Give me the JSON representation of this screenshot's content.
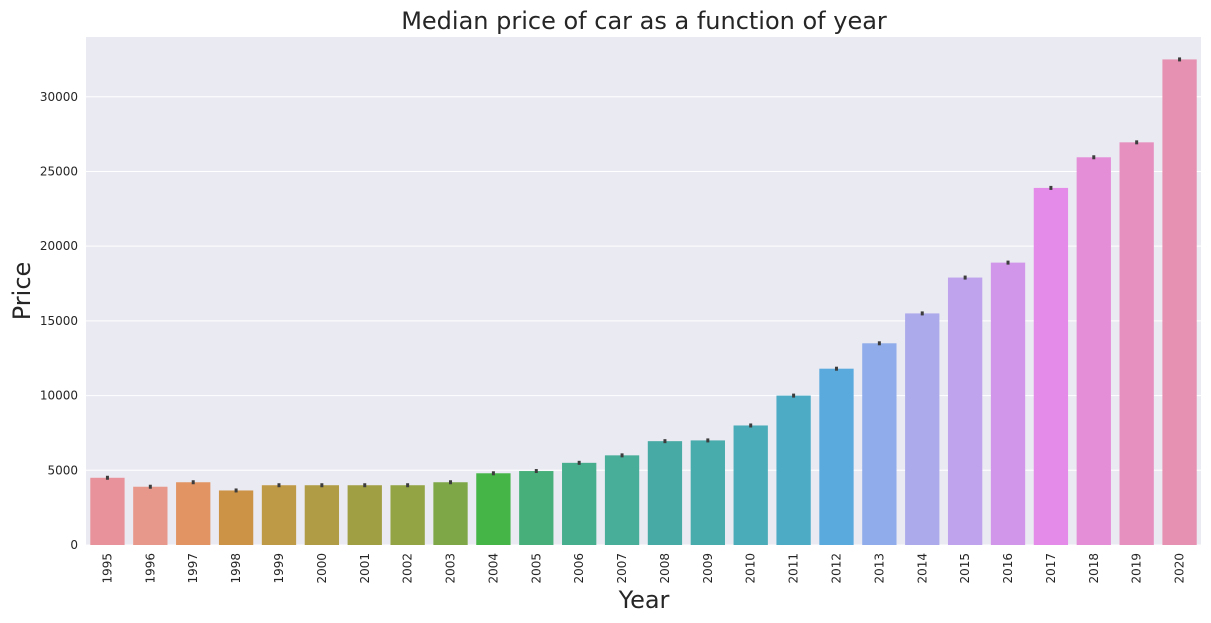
{
  "chart_data": {
    "type": "bar",
    "title": "Median price of car as a function of year",
    "xlabel": "Year",
    "ylabel": "Price",
    "categories": [
      "1995",
      "1996",
      "1997",
      "1998",
      "1999",
      "2000",
      "2001",
      "2002",
      "2003",
      "2004",
      "2005",
      "2006",
      "2007",
      "2008",
      "2009",
      "2010",
      "2011",
      "2012",
      "2013",
      "2014",
      "2015",
      "2016",
      "2017",
      "2018",
      "2019",
      "2020"
    ],
    "values": [
      4500,
      3900,
      4200,
      3650,
      4000,
      4000,
      4000,
      4000,
      4200,
      4800,
      4950,
      5500,
      6000,
      6950,
      7000,
      8000,
      10000,
      11800,
      13500,
      15500,
      17900,
      18900,
      23900,
      25950,
      26950,
      32500
    ],
    "ylim": [
      0,
      34000
    ],
    "yticks": [
      0,
      5000,
      10000,
      15000,
      20000,
      25000,
      30000
    ],
    "ytick_labels": [
      "0",
      "5000",
      "10000",
      "15000",
      "20000",
      "25000",
      "30000"
    ],
    "grid": true,
    "background": "#eaeaf2",
    "colors": [
      "#e8939c",
      "#e8988a",
      "#e29463",
      "#cc9346",
      "#bf9a46",
      "#b09c44",
      "#a19f44",
      "#92a444",
      "#7ea847",
      "#44b546",
      "#47b07a",
      "#47ae8d",
      "#48ad99",
      "#48aaa5",
      "#48abac",
      "#4aacb8",
      "#4eabc6",
      "#5aaade",
      "#90acea",
      "#adaaec",
      "#bfa3ec",
      "#d196e9",
      "#e48be9",
      "#e58ed8",
      "#e690c0",
      "#e691b1"
    ],
    "error_bar_color": "#3d3d3d"
  }
}
